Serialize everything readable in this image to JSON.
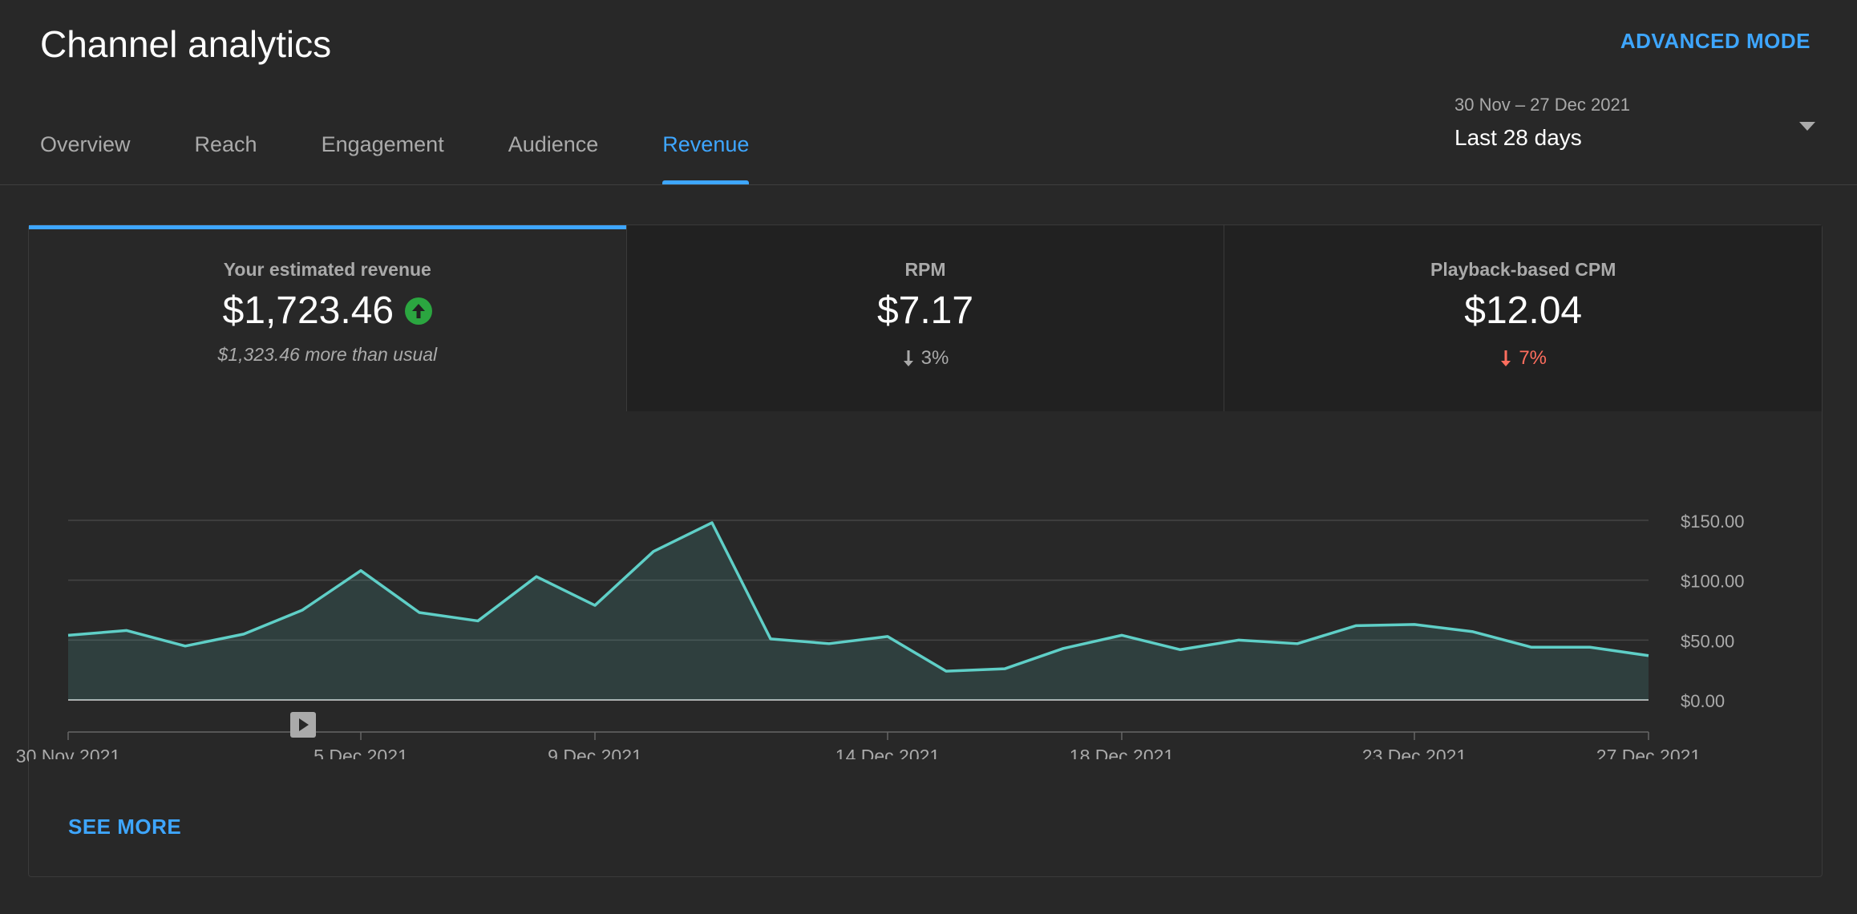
{
  "header": {
    "title": "Channel analytics",
    "advanced_mode": "ADVANCED MODE"
  },
  "tabs": [
    {
      "label": "Overview"
    },
    {
      "label": "Reach"
    },
    {
      "label": "Engagement"
    },
    {
      "label": "Audience"
    },
    {
      "label": "Revenue"
    }
  ],
  "active_tab": "Revenue",
  "date_picker": {
    "range": "30 Nov – 27 Dec 2021",
    "label": "Last 28 days"
  },
  "metrics": [
    {
      "label": "Your estimated revenue",
      "value": "$1,723.46",
      "sub": "$1,323.46 more than usual",
      "trend": "up"
    },
    {
      "label": "RPM",
      "value": "$7.17",
      "delta": "3%",
      "trend": "down-neutral"
    },
    {
      "label": "Playback-based CPM",
      "value": "$12.04",
      "delta": "7%",
      "trend": "down-negative"
    }
  ],
  "see_more": "SEE MORE",
  "colors": {
    "accent": "#3ea6ff",
    "line": "#5fcfc7",
    "positive": "#2ba640",
    "negative": "#ff6e5e"
  },
  "chart_data": {
    "type": "area",
    "x": [
      "30 Nov 2021",
      "1 Dec 2021",
      "2 Dec 2021",
      "3 Dec 2021",
      "4 Dec 2021",
      "5 Dec 2021",
      "6 Dec 2021",
      "7 Dec 2021",
      "8 Dec 2021",
      "9 Dec 2021",
      "10 Dec 2021",
      "11 Dec 2021",
      "12 Dec 2021",
      "13 Dec 2021",
      "14 Dec 2021",
      "15 Dec 2021",
      "16 Dec 2021",
      "17 Dec 2021",
      "18 Dec 2021",
      "19 Dec 2021",
      "20 Dec 2021",
      "21 Dec 2021",
      "22 Dec 2021",
      "23 Dec 2021",
      "24 Dec 2021",
      "25 Dec 2021",
      "26 Dec 2021",
      "27 Dec 2021"
    ],
    "values": [
      54,
      58,
      45,
      55,
      75,
      108,
      73,
      66,
      103,
      79,
      124,
      148,
      51,
      47,
      53,
      24,
      26,
      43,
      54,
      42,
      50,
      47,
      62,
      63,
      57,
      44,
      44,
      37
    ],
    "ylim": [
      0,
      150
    ],
    "y_ticks": [
      "$0.00",
      "$50.00",
      "$100.00",
      "$150.00"
    ],
    "x_tick_labels": [
      "30 Nov 2021",
      "5 Dec 2021",
      "9 Dec 2021",
      "14 Dec 2021",
      "18 Dec 2021",
      "23 Dec 2021",
      "27 Dec 2021"
    ],
    "grid": true,
    "marker_icon": "play-icon"
  }
}
